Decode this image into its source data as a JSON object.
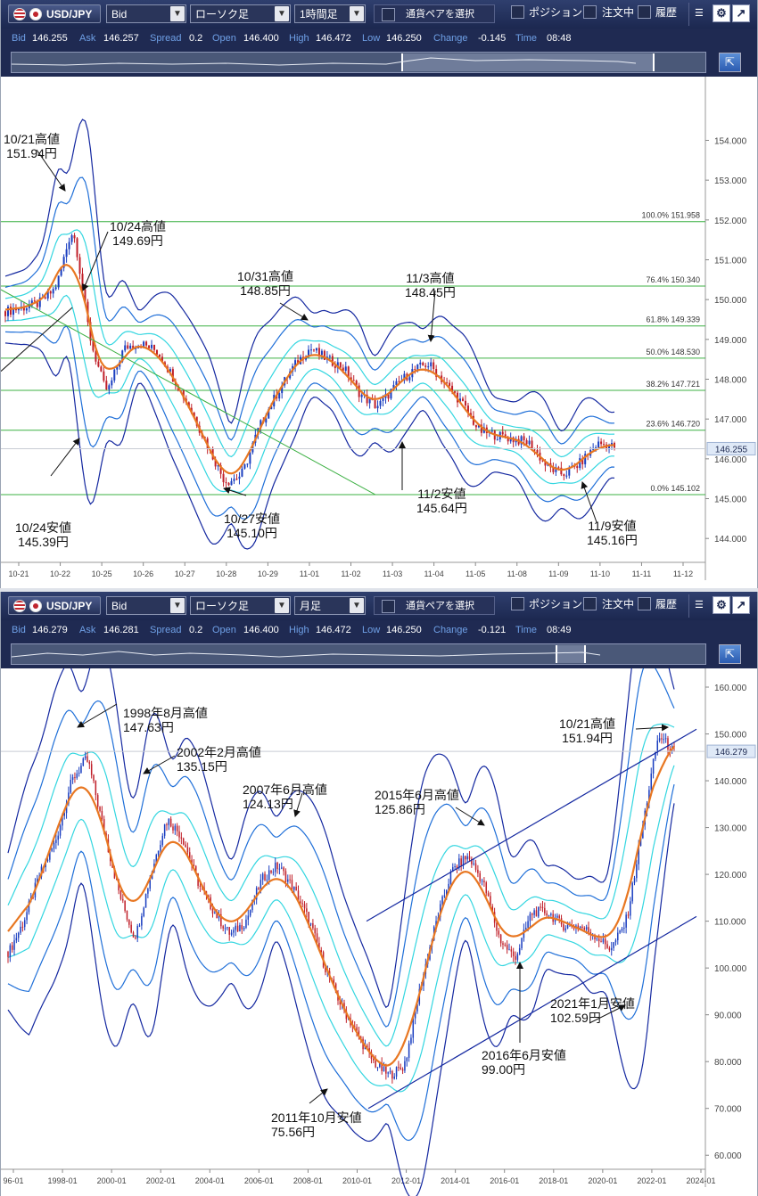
{
  "panels": [
    {
      "pair": "USD/JPY",
      "price_type": "Bid",
      "chart_type": "ローソク足",
      "timeframe": "1時間足",
      "select_pair": "通貨ペアを選択",
      "position": "ポジション",
      "orders": "注文中",
      "history": "履歴",
      "info": {
        "bid_label": "Bid",
        "bid": "146.255",
        "ask_label": "Ask",
        "ask": "146.257",
        "spread_label": "Spread",
        "spread": "0.2",
        "open_label": "Open",
        "open": "146.400",
        "high_label": "High",
        "high": "146.472",
        "low_label": "Low",
        "low": "146.250",
        "change_label": "Change",
        "change": "-0.145",
        "time_label": "Time",
        "time": "08:48"
      },
      "current_price": "146.255",
      "annotations": {
        "a1": "10/21高値",
        "a1v": "151.94円",
        "a2": "10/24高値",
        "a2v": "149.69円",
        "a3": "10/31高値",
        "a3v": "148.85円",
        "a4": "11/3高値",
        "a4v": "148.45円",
        "a5": "10/24安値",
        "a5v": "145.39円",
        "a6": "10/27安値",
        "a6v": "145.10円",
        "a7": "11/2安値",
        "a7v": "145.64円",
        "a8": "11/9安値",
        "a8v": "145.16円"
      },
      "fib_labels": [
        "100.0%  151.958",
        "76.4%  150.340",
        "61.8%  149.339",
        "50.0%  148.530",
        "38.2%  147.721",
        "23.6%  146.720",
        "0.0%  145.102"
      ]
    },
    {
      "pair": "USD/JPY",
      "price_type": "Bid",
      "chart_type": "ローソク足",
      "timeframe": "月足",
      "select_pair": "通貨ペアを選択",
      "position": "ポジション",
      "orders": "注文中",
      "history": "履歴",
      "info": {
        "bid_label": "Bid",
        "bid": "146.279",
        "ask_label": "Ask",
        "ask": "146.281",
        "spread_label": "Spread",
        "spread": "0.2",
        "open_label": "Open",
        "open": "146.400",
        "high_label": "High",
        "high": "146.472",
        "low_label": "Low",
        "low": "146.250",
        "change_label": "Change",
        "change": "-0.121",
        "time_label": "Time",
        "time": "08:49"
      },
      "current_price": "146.279",
      "annotations": {
        "b1": "1998年8月高値",
        "b1v": "147.63円",
        "b2": "2002年2月高値",
        "b2v": "135.15円",
        "b3": "2007年6月高値",
        "b3v": "124.13円",
        "b4": "2015年6月高値",
        "b4v": "125.86円",
        "b5": "10/21高値",
        "b5v": "151.94円",
        "b6": "2011年10月安値",
        "b6v": "75.56円",
        "b7": "2016年6月安値",
        "b7v": "99.00円",
        "b8": "2021年1月安値",
        "b8v": "102.59円"
      }
    }
  ],
  "chart_data": [
    {
      "type": "candlestick",
      "title": "",
      "x_tick_labels": [
        "10-21",
        "10-22",
        "10-25",
        "10-26",
        "10-27",
        "10-28",
        "10-29",
        "11-01",
        "11-02",
        "11-03",
        "11-04",
        "11-05",
        "11-08",
        "11-09",
        "11-10",
        "11-11",
        "11-12"
      ],
      "y_tick_labels": [
        "154.000",
        "153.000",
        "152.000",
        "151.000",
        "150.000",
        "149.000",
        "148.000",
        "147.000",
        "146.000",
        "145.000",
        "144.000"
      ],
      "ylim": [
        143.4,
        155.6
      ],
      "fibonacci": [
        {
          "level": "100.0%",
          "value": 151.958
        },
        {
          "level": "76.4%",
          "value": 150.34
        },
        {
          "level": "61.8%",
          "value": 149.339
        },
        {
          "level": "50.0%",
          "value": 148.53
        },
        {
          "level": "38.2%",
          "value": 147.721
        },
        {
          "level": "23.6%",
          "value": 146.72
        },
        {
          "level": "0.0%",
          "value": 145.102
        }
      ],
      "key_points": [
        {
          "label": "10/21高値",
          "value": 151.94
        },
        {
          "label": "10/24高値",
          "value": 149.69
        },
        {
          "label": "10/31高値",
          "value": 148.85
        },
        {
          "label": "11/3高値",
          "value": 148.45
        },
        {
          "label": "10/24安値",
          "value": 145.39
        },
        {
          "label": "10/27安値",
          "value": 145.1
        },
        {
          "label": "11/2安値",
          "value": 145.64
        },
        {
          "label": "11/9安値",
          "value": 145.16
        }
      ],
      "series_close": [
        149.7,
        149.8,
        149.9,
        150.3,
        151.9,
        149.0,
        147.6,
        148.8,
        148.9,
        148.7,
        148.0,
        147.2,
        146.3,
        145.4,
        145.6,
        146.8,
        147.6,
        148.3,
        148.8,
        148.5,
        148.3,
        147.6,
        147.3,
        147.8,
        148.2,
        148.4,
        147.9,
        147.4,
        146.7,
        146.6,
        146.5,
        146.4,
        145.8,
        145.6,
        145.9,
        146.4,
        146.3
      ],
      "current_price": 146.255,
      "colors": {
        "up": "#1a3ec0",
        "down": "#c0202a",
        "ma": "#e87722",
        "band_outer": "#1428a0",
        "band_mid": "#1f6fd8",
        "band_inner": "#33d6e0",
        "fib": "#3cb043"
      }
    },
    {
      "type": "candlestick",
      "title": "",
      "x_tick_labels": [
        "96-01",
        "1998-01",
        "2000-01",
        "2002-01",
        "2004-01",
        "2006-01",
        "2008-01",
        "2010-01",
        "2012-01",
        "2014-01",
        "2016-01",
        "2018-01",
        "2020-01",
        "2022-01",
        "2024-01"
      ],
      "y_tick_labels": [
        "160.000",
        "150.000",
        "140.000",
        "130.000",
        "120.000",
        "110.000",
        "100.000",
        "90.000",
        "80.000",
        "70.000",
        "60.000"
      ],
      "ylim": [
        57,
        164
      ],
      "key_points": [
        {
          "label": "1998年8月高値",
          "value": 147.63
        },
        {
          "label": "2002年2月高値",
          "value": 135.15
        },
        {
          "label": "2007年6月高値",
          "value": 124.13
        },
        {
          "label": "2015年6月高値",
          "value": 125.86
        },
        {
          "label": "10/21高値",
          "value": 151.94
        },
        {
          "label": "2011年10月安値",
          "value": 75.56
        },
        {
          "label": "2016年6月安値",
          "value": 99.0
        },
        {
          "label": "2021年1月安値",
          "value": 102.59
        }
      ],
      "series_close": [
        103,
        110,
        120,
        127,
        140,
        145,
        130,
        116,
        106,
        120,
        132,
        128,
        118,
        112,
        107,
        110,
        119,
        122,
        117,
        110,
        100,
        92,
        86,
        80,
        77,
        79,
        96,
        110,
        121,
        124,
        118,
        106,
        102,
        112,
        112,
        109,
        109,
        107,
        104,
        110,
        130,
        150,
        146
      ],
      "current_price": 146.279,
      "colors": {
        "up": "#1a3ec0",
        "down": "#c0202a",
        "ma": "#e87722",
        "band_outer": "#1428a0",
        "band_mid": "#1f6fd8",
        "band_inner": "#33d6e0",
        "channel": "#1428a0"
      }
    }
  ]
}
